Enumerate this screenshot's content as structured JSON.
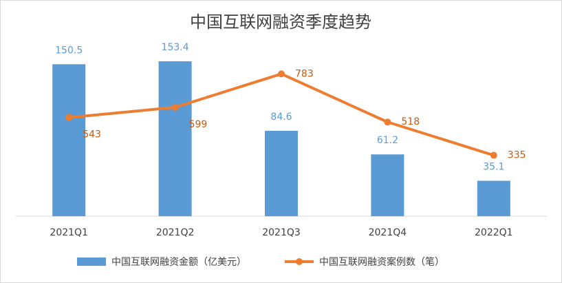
{
  "chart_data": {
    "type": "combo",
    "title": "中国互联网融资季度趋势",
    "categories": [
      "2021Q1",
      "2021Q2",
      "2021Q3",
      "2021Q4",
      "2022Q1"
    ],
    "series": [
      {
        "name": "中国互联网融资金额（亿美元）",
        "type": "bar",
        "color": "#5b9bd5",
        "values": [
          150.5,
          153.4,
          84.6,
          61.2,
          35.1
        ]
      },
      {
        "name": "中国互联网融资案例数（笔）",
        "type": "line",
        "color": "#ed7d31",
        "axis": "y2",
        "values": [
          543,
          599,
          783,
          518,
          335
        ]
      }
    ],
    "ylim": [
      0,
      180
    ],
    "y2lim": [
      0,
      1000
    ],
    "legend": "bottom"
  }
}
